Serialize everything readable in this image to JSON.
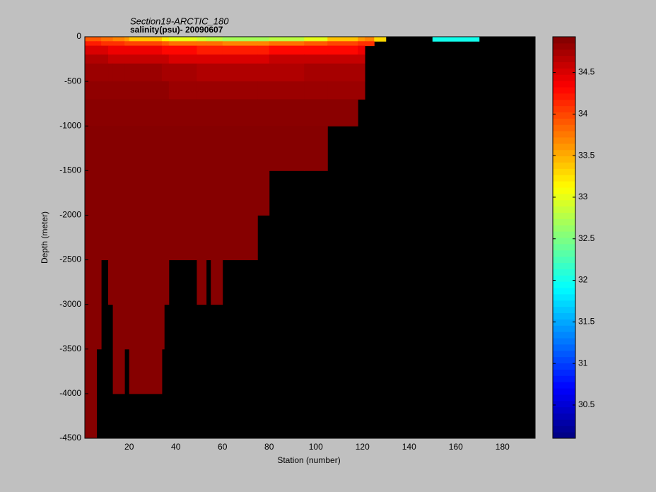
{
  "chart_data": {
    "type": "heatmap",
    "title": "Section19-ARCTIC_180",
    "subtitle": "salinity(psu)- 20090607",
    "xlabel": "Station (number)",
    "ylabel": "Depth (meter)",
    "colormap": "jet",
    "nan_color": "#000000",
    "xlim": [
      1,
      194
    ],
    "ylim": [
      -4500,
      0
    ],
    "clim": [
      30.1,
      34.93
    ],
    "xticks": [
      20,
      40,
      60,
      80,
      100,
      120,
      140,
      160,
      180
    ],
    "yticks": [
      0,
      -500,
      -1000,
      -1500,
      -2000,
      -2500,
      -3000,
      -3500,
      -4000,
      -4500
    ],
    "cticks": [
      30.5,
      31,
      31.5,
      32,
      32.5,
      33,
      33.5,
      34,
      34.5
    ],
    "x_bins": [
      1,
      6,
      8,
      11,
      13,
      18,
      20,
      34,
      35,
      37,
      49,
      53,
      55,
      60,
      75,
      80,
      95,
      105,
      118,
      121,
      125,
      130,
      150,
      170,
      194
    ],
    "y_bins": [
      0,
      -50,
      -100,
      -200,
      -300,
      -500,
      -700,
      -1000,
      -1500,
      -2000,
      -2500,
      -3000,
      -3500,
      -4000,
      -4500
    ],
    "values": [
      [
        33.9,
        33.9,
        33.8,
        33.8,
        33.7,
        33.6,
        33.4,
        33.2,
        33.2,
        33.0,
        32.9,
        32.8,
        32.8,
        32.7,
        32.7,
        32.8,
        33.0,
        33.4,
        33.6,
        33.7,
        33.3,
        null,
        32.0,
        null
      ],
      [
        34.2,
        34.2,
        34.1,
        34.1,
        34.1,
        34.0,
        34.0,
        33.9,
        33.9,
        33.8,
        33.8,
        33.8,
        33.8,
        33.7,
        33.7,
        33.8,
        33.9,
        34.0,
        34.1,
        34.1,
        null,
        null,
        null,
        null
      ],
      [
        34.5,
        34.5,
        34.5,
        34.4,
        34.4,
        34.4,
        34.4,
        34.3,
        34.3,
        34.3,
        34.2,
        34.2,
        34.2,
        34.2,
        34.2,
        34.3,
        34.3,
        34.3,
        34.4,
        null,
        null,
        null,
        null,
        null
      ],
      [
        34.7,
        34.7,
        34.7,
        34.6,
        34.6,
        34.6,
        34.6,
        34.6,
        34.6,
        34.5,
        34.5,
        34.5,
        34.5,
        34.5,
        34.5,
        34.6,
        34.6,
        34.6,
        34.6,
        null,
        null,
        null,
        null,
        null
      ],
      [
        34.8,
        34.8,
        34.8,
        34.8,
        34.8,
        34.8,
        34.8,
        34.75,
        34.75,
        34.75,
        34.7,
        34.7,
        34.7,
        34.7,
        34.7,
        34.7,
        34.75,
        34.75,
        34.75,
        null,
        null,
        null,
        null,
        null
      ],
      [
        34.85,
        34.85,
        34.85,
        34.85,
        34.85,
        34.85,
        34.85,
        34.85,
        34.85,
        34.8,
        34.8,
        34.8,
        34.8,
        34.8,
        34.8,
        34.8,
        34.8,
        34.8,
        34.8,
        null,
        null,
        null,
        null,
        null
      ],
      [
        34.88,
        34.88,
        34.88,
        34.88,
        34.88,
        34.88,
        34.88,
        34.88,
        34.88,
        34.88,
        34.88,
        34.88,
        34.88,
        34.88,
        34.88,
        34.88,
        34.88,
        34.88,
        null,
        null,
        null,
        null,
        null,
        null
      ],
      [
        34.9,
        34.9,
        34.9,
        34.9,
        34.9,
        34.9,
        34.9,
        34.9,
        34.9,
        34.9,
        34.9,
        34.9,
        34.9,
        34.9,
        34.9,
        34.9,
        34.9,
        null,
        null,
        null,
        null,
        null,
        null,
        null
      ],
      [
        34.9,
        34.9,
        34.9,
        34.9,
        34.9,
        34.9,
        34.9,
        34.9,
        34.9,
        34.9,
        34.9,
        34.9,
        34.9,
        34.9,
        34.9,
        null,
        null,
        null,
        null,
        null,
        null,
        null,
        null,
        null
      ],
      [
        34.9,
        34.9,
        34.9,
        34.9,
        34.9,
        34.9,
        34.9,
        34.9,
        34.9,
        34.9,
        34.9,
        34.9,
        34.9,
        34.9,
        null,
        null,
        null,
        null,
        null,
        null,
        null,
        null,
        null,
        null
      ],
      [
        34.9,
        34.9,
        null,
        34.9,
        34.9,
        34.9,
        34.9,
        34.9,
        34.9,
        null,
        34.9,
        null,
        34.9,
        null,
        null,
        null,
        null,
        null,
        null,
        null,
        null,
        null,
        null,
        null
      ],
      [
        34.9,
        34.9,
        null,
        null,
        34.9,
        34.9,
        34.9,
        34.9,
        null,
        null,
        null,
        null,
        null,
        null,
        null,
        null,
        null,
        null,
        null,
        null,
        null,
        null,
        null,
        null
      ],
      [
        34.9,
        null,
        null,
        null,
        34.9,
        null,
        34.9,
        null,
        null,
        null,
        null,
        null,
        null,
        null,
        null,
        null,
        null,
        null,
        null,
        null,
        null,
        null,
        null,
        null
      ],
      [
        34.9,
        null,
        null,
        null,
        null,
        null,
        null,
        null,
        null,
        null,
        null,
        null,
        null,
        null,
        null,
        null,
        null,
        null,
        null,
        null,
        null,
        null,
        null,
        null
      ]
    ]
  }
}
